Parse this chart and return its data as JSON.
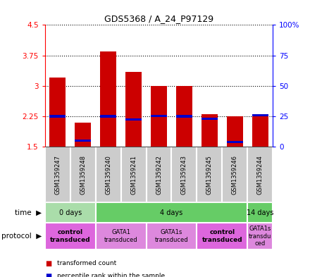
{
  "title": "GDS5368 / A_24_P97129",
  "samples": [
    "GSM1359247",
    "GSM1359248",
    "GSM1359240",
    "GSM1359241",
    "GSM1359242",
    "GSM1359243",
    "GSM1359245",
    "GSM1359246",
    "GSM1359244"
  ],
  "bar_bottoms": [
    1.5,
    1.5,
    1.5,
    1.5,
    1.5,
    1.5,
    1.5,
    1.5,
    1.5
  ],
  "bar_tops": [
    3.2,
    2.1,
    3.85,
    3.35,
    3.0,
    3.0,
    2.3,
    2.25,
    2.3
  ],
  "percentile_values": [
    2.25,
    1.65,
    2.25,
    2.18,
    2.26,
    2.25,
    2.19,
    1.62,
    2.27
  ],
  "percentile_bar_height": 0.055,
  "ylim_left": [
    1.5,
    4.5
  ],
  "ylim_right": [
    0,
    100
  ],
  "yticks_left": [
    1.5,
    2.25,
    3.0,
    3.75,
    4.5
  ],
  "yticks_left_labels": [
    "1.5",
    "2.25",
    "3",
    "3.75",
    "4.5"
  ],
  "yticks_right": [
    0,
    25,
    50,
    75,
    100
  ],
  "yticks_right_labels": [
    "0",
    "25",
    "50",
    "75",
    "100%"
  ],
  "bar_color": "#cc0000",
  "percentile_color": "#0000cc",
  "grid_color": "#000000",
  "time_groups": [
    {
      "label": "0 days",
      "start": 0,
      "end": 2,
      "color": "#aaddaa"
    },
    {
      "label": "4 days",
      "start": 2,
      "end": 8,
      "color": "#66cc66"
    },
    {
      "label": "14 days",
      "start": 8,
      "end": 9,
      "color": "#66cc66"
    }
  ],
  "protocol_groups": [
    {
      "label": "control\ntransduced",
      "start": 0,
      "end": 2,
      "color": "#dd66dd",
      "bold": true
    },
    {
      "label": "GATA1\ntransduced",
      "start": 2,
      "end": 4,
      "color": "#dd88dd",
      "bold": false
    },
    {
      "label": "GATA1s\ntransduced",
      "start": 4,
      "end": 6,
      "color": "#dd88dd",
      "bold": false
    },
    {
      "label": "control\ntransduced",
      "start": 6,
      "end": 8,
      "color": "#dd66dd",
      "bold": true
    },
    {
      "label": "GATA1s\ntransdu\nced",
      "start": 8,
      "end": 9,
      "color": "#dd88dd",
      "bold": false
    }
  ],
  "sample_bg_color": "#cccccc",
  "legend_items": [
    {
      "color": "#cc0000",
      "label": "transformed count"
    },
    {
      "color": "#0000cc",
      "label": "percentile rank within the sample"
    }
  ]
}
